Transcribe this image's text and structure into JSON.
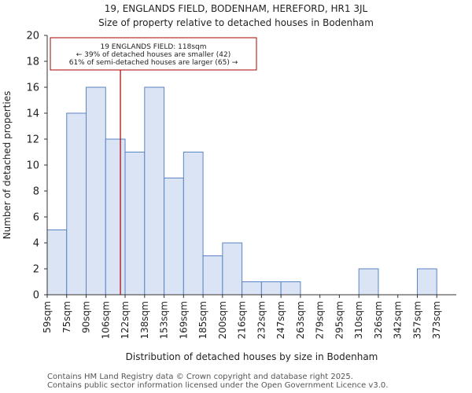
{
  "chart_data": {
    "type": "bar",
    "title_line1": "19, ENGLANDS FIELD, BODENHAM, HEREFORD, HR1 3JL",
    "title_line2": "Size of property relative to detached houses in Bodenham",
    "xlabel": "Distribution of detached houses by size in Bodenham",
    "ylabel": "Number of detached properties",
    "categories": [
      "59sqm",
      "75sqm",
      "90sqm",
      "106sqm",
      "122sqm",
      "138sqm",
      "153sqm",
      "169sqm",
      "185sqm",
      "200sqm",
      "216sqm",
      "232sqm",
      "247sqm",
      "263sqm",
      "279sqm",
      "295sqm",
      "310sqm",
      "326sqm",
      "342sqm",
      "357sqm",
      "373sqm"
    ],
    "values": [
      5,
      14,
      16,
      12,
      11,
      16,
      9,
      11,
      3,
      4,
      1,
      1,
      1,
      0,
      0,
      0,
      2,
      0,
      0,
      2,
      0
    ],
    "ylim": [
      0,
      20
    ],
    "yticks": [
      0,
      2,
      4,
      6,
      8,
      10,
      12,
      14,
      16,
      18,
      20
    ],
    "marker_value_sqm": 118,
    "annotation": {
      "line1": "19 ENGLANDS FIELD: 118sqm",
      "line2": "← 39% of detached houses are smaller (42)",
      "line3": "61% of semi-detached houses are larger (65) →"
    },
    "colors": {
      "bar_fill": "#dae4f4",
      "bar_stroke": "#5b84c4",
      "marker": "#aa0000",
      "axis": "#333333"
    }
  },
  "footer": {
    "line1": "Contains HM Land Registry data © Crown copyright and database right 2025.",
    "line2": "Contains public sector information licensed under the Open Government Licence v3.0."
  }
}
